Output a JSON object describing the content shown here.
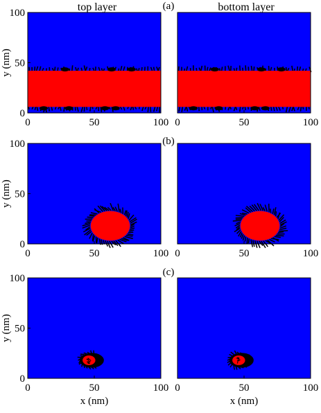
{
  "figure": {
    "col_titles": [
      "top layer",
      "bottom layer"
    ],
    "panel_labels": [
      "(a)",
      "(b)",
      "(c)"
    ],
    "ylabel": "y (nm)",
    "xlabel": "x (nm)",
    "colors": {
      "domain": "#0000ff",
      "magnetized": "#ff0000",
      "arrows": "#000000"
    }
  },
  "chart_data": [
    {
      "type": "heatmap",
      "panel": "(a)",
      "layer": "top layer",
      "xlim": [
        0,
        100
      ],
      "ylim": [
        0,
        100
      ],
      "x_ticks": [
        "0",
        "50",
        "100"
      ],
      "y_ticks": [
        "0",
        "50",
        "100"
      ],
      "ylabel": "y (nm)",
      "xlabel": "",
      "feature": {
        "shape": "band",
        "y_range": [
          6,
          42
        ]
      }
    },
    {
      "type": "heatmap",
      "panel": "(a)",
      "layer": "bottom layer",
      "xlim": [
        0,
        100
      ],
      "ylim": [
        0,
        100
      ],
      "x_ticks": [
        "0",
        "50",
        "100"
      ],
      "y_ticks": [],
      "ylabel": "",
      "xlabel": "",
      "feature": {
        "shape": "band",
        "y_range": [
          6,
          42
        ]
      }
    },
    {
      "type": "heatmap",
      "panel": "(b)",
      "layer": "top layer",
      "xlim": [
        0,
        100
      ],
      "ylim": [
        0,
        100
      ],
      "x_ticks": [
        "0",
        "50",
        "100"
      ],
      "y_ticks": [
        "0",
        "50",
        "100"
      ],
      "ylabel": "y (nm)",
      "xlabel": "",
      "feature": {
        "shape": "disk",
        "center": [
          62,
          18
        ],
        "radius": 16
      }
    },
    {
      "type": "heatmap",
      "panel": "(b)",
      "layer": "bottom layer",
      "xlim": [
        0,
        100
      ],
      "ylim": [
        0,
        100
      ],
      "x_ticks": [
        "0",
        "50",
        "100"
      ],
      "y_ticks": [],
      "ylabel": "",
      "xlabel": "",
      "feature": {
        "shape": "disk",
        "center": [
          62,
          18
        ],
        "radius": 16
      }
    },
    {
      "type": "heatmap",
      "panel": "(c)",
      "layer": "top layer",
      "xlim": [
        0,
        100
      ],
      "ylim": [
        0,
        100
      ],
      "x_ticks": [
        "0",
        "50",
        "100"
      ],
      "y_ticks": [
        "0",
        "50",
        "100"
      ],
      "ylabel": "y (nm)",
      "xlabel": "x (nm)",
      "feature": {
        "shape": "spot",
        "center": [
          46,
          18
        ],
        "radius": 6
      }
    },
    {
      "type": "heatmap",
      "panel": "(c)",
      "layer": "bottom layer",
      "xlim": [
        0,
        100
      ],
      "ylim": [
        0,
        100
      ],
      "x_ticks": [
        "0",
        "50",
        "100"
      ],
      "y_ticks": [],
      "ylabel": "",
      "xlabel": "x (nm)",
      "feature": {
        "shape": "spot",
        "center": [
          46,
          18
        ],
        "radius": 6
      }
    }
  ]
}
